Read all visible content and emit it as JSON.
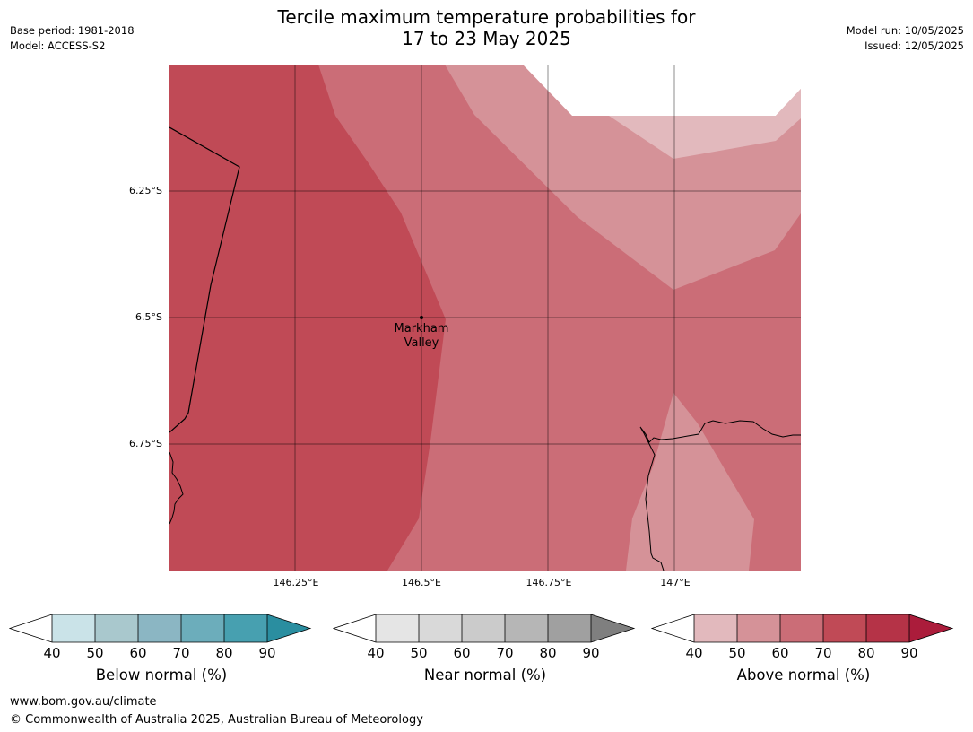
{
  "header": {
    "title_line1": "Tercile maximum temperature probabilities for",
    "title_line2": "17 to 23 May 2025",
    "base_period": "Base period: 1981-2018",
    "model": "Model: ACCESS-S2",
    "model_run": "Model run: 10/05/2025",
    "issued": "Issued: 12/05/2025"
  },
  "map": {
    "y_axis_labels": [
      "6.25°S",
      "6.5°S",
      "6.75°S"
    ],
    "x_axis_labels": [
      "146.25°E",
      "146.5°E",
      "146.75°E",
      "147°E"
    ],
    "city_line1": "Markham",
    "city_line2": "Valley"
  },
  "colorbars": [
    {
      "name": "Below normal (%)",
      "ticks": [
        "40",
        "50",
        "60",
        "70",
        "80",
        "90"
      ],
      "colors": [
        "#ffffff",
        "#cae3e8",
        "#a9c8cd",
        "#8bb6c3",
        "#6cadbb",
        "#47a0b0",
        "#2a8ea0"
      ]
    },
    {
      "name": "Near normal (%)",
      "ticks": [
        "40",
        "50",
        "60",
        "70",
        "80",
        "90"
      ],
      "colors": [
        "#ffffff",
        "#e5e5e5",
        "#d9d9d9",
        "#cbcbcb",
        "#b6b6b6",
        "#a0a0a0",
        "#7f7f7f"
      ]
    },
    {
      "name": "Above normal (%)",
      "ticks": [
        "40",
        "50",
        "60",
        "70",
        "80",
        "90"
      ],
      "colors": [
        "#ffffff",
        "#e2b9bd",
        "#d59298",
        "#cb6d77",
        "#c04a56",
        "#b53347",
        "#ab1c3b"
      ]
    }
  ],
  "footer": {
    "url": "www.bom.gov.au/climate",
    "copyright": "© Commonwealth of Australia 2025, Australian Bureau of Meteorology"
  }
}
